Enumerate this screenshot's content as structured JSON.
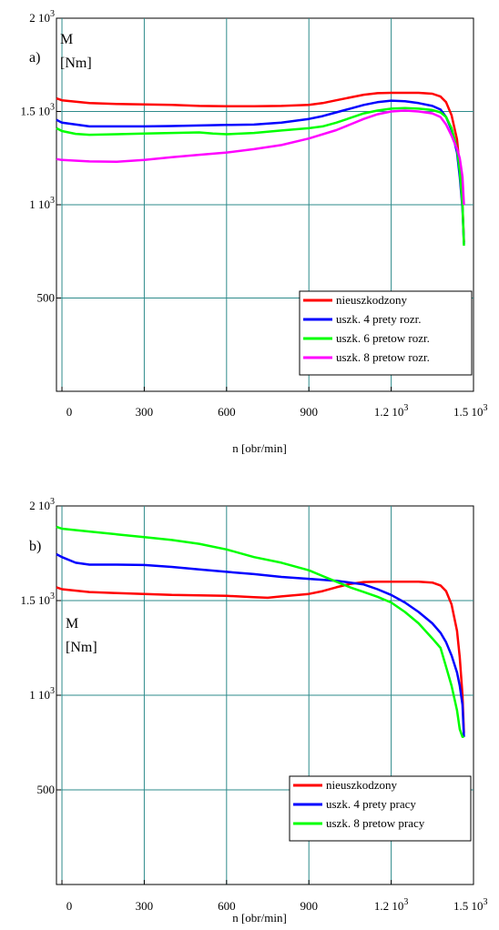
{
  "chart_data": [
    {
      "type": "line",
      "panel_label": "a)",
      "ylabel_line1": "M",
      "ylabel_line2": "[Nm]",
      "xlabel": "n [obr/min]",
      "xlim": [
        -20,
        1500
      ],
      "ylim": [
        0,
        2000
      ],
      "x_ticks": [
        {
          "value": 0,
          "label": "0"
        },
        {
          "value": 300,
          "label": "300"
        },
        {
          "value": 600,
          "label": "600"
        },
        {
          "value": 900,
          "label": "900"
        },
        {
          "value": 1200,
          "label": "1.2 10",
          "sup": "3"
        },
        {
          "value": 1500,
          "label": "1.5 10",
          "sup": "3"
        }
      ],
      "y_ticks": [
        {
          "value": 500,
          "label": "500"
        },
        {
          "value": 1000,
          "label": "1 10",
          "sup": "3"
        },
        {
          "value": 1500,
          "label": "1.5 10",
          "sup": "3"
        },
        {
          "value": 2000,
          "label": "2 10",
          "sup": "3"
        }
      ],
      "grid": true,
      "legend_position": "bottom-right",
      "series": [
        {
          "name": "nieuszkodzony",
          "color": "#ff0000",
          "x": [
            -20,
            0,
            100,
            200,
            300,
            400,
            500,
            600,
            700,
            800,
            900,
            950,
            1000,
            1050,
            1100,
            1150,
            1200,
            1250,
            1300,
            1350,
            1380,
            1400,
            1420,
            1440,
            1450,
            1460,
            1465
          ],
          "y": [
            1570,
            1560,
            1545,
            1540,
            1538,
            1535,
            1530,
            1528,
            1528,
            1530,
            1535,
            1545,
            1560,
            1575,
            1590,
            1598,
            1600,
            1600,
            1600,
            1595,
            1580,
            1550,
            1480,
            1350,
            1200,
            1000,
            800
          ]
        },
        {
          "name": "uszk. 4 prety rozr.",
          "color": "#0000ff",
          "x": [
            -20,
            0,
            100,
            200,
            300,
            400,
            500,
            600,
            700,
            800,
            900,
            950,
            1000,
            1050,
            1100,
            1150,
            1200,
            1250,
            1300,
            1350,
            1380,
            1400,
            1420,
            1440,
            1450,
            1460,
            1465
          ],
          "y": [
            1455,
            1440,
            1420,
            1420,
            1420,
            1422,
            1425,
            1428,
            1430,
            1440,
            1460,
            1475,
            1495,
            1515,
            1535,
            1550,
            1558,
            1555,
            1545,
            1530,
            1510,
            1470,
            1400,
            1280,
            1150,
            980,
            790
          ]
        },
        {
          "name": "uszk. 6 pretow rozr.",
          "color": "#00ff00",
          "x": [
            -20,
            0,
            50,
            100,
            200,
            300,
            400,
            500,
            550,
            600,
            700,
            800,
            900,
            950,
            1000,
            1050,
            1100,
            1150,
            1200,
            1250,
            1300,
            1350,
            1380,
            1400,
            1420,
            1440,
            1450,
            1460,
            1465
          ],
          "y": [
            1410,
            1395,
            1380,
            1375,
            1378,
            1382,
            1385,
            1388,
            1382,
            1378,
            1385,
            1398,
            1410,
            1420,
            1440,
            1465,
            1490,
            1505,
            1515,
            1518,
            1515,
            1508,
            1495,
            1470,
            1410,
            1300,
            1180,
            1000,
            780
          ]
        },
        {
          "name": "uszk. 8 pretow rozr.",
          "color": "#ff00ff",
          "x": [
            -20,
            0,
            100,
            200,
            300,
            400,
            500,
            600,
            700,
            800,
            900,
            1000,
            1050,
            1100,
            1150,
            1200,
            1250,
            1300,
            1350,
            1380,
            1400,
            1420,
            1440,
            1450,
            1460,
            1465
          ],
          "y": [
            1245,
            1240,
            1232,
            1230,
            1240,
            1255,
            1268,
            1280,
            1298,
            1320,
            1355,
            1400,
            1430,
            1460,
            1485,
            1500,
            1505,
            1500,
            1490,
            1470,
            1430,
            1370,
            1300,
            1250,
            1150,
            1000
          ]
        }
      ]
    },
    {
      "type": "line",
      "panel_label": "b)",
      "ylabel_line1": "M",
      "ylabel_line2": "[Nm]",
      "xlabel": "n [obr/min]",
      "xlim": [
        -20,
        1500
      ],
      "ylim": [
        0,
        2000
      ],
      "x_ticks": [
        {
          "value": 0,
          "label": "0"
        },
        {
          "value": 300,
          "label": "300"
        },
        {
          "value": 600,
          "label": "600"
        },
        {
          "value": 900,
          "label": "900"
        },
        {
          "value": 1200,
          "label": "1.2 10",
          "sup": "3"
        },
        {
          "value": 1500,
          "label": "1.5 10",
          "sup": "3"
        }
      ],
      "y_ticks": [
        {
          "value": 500,
          "label": "500"
        },
        {
          "value": 1000,
          "label": "1 10",
          "sup": "3"
        },
        {
          "value": 1500,
          "label": "1.5 10",
          "sup": "3"
        },
        {
          "value": 2000,
          "label": "2 10",
          "sup": "3"
        }
      ],
      "grid": true,
      "legend_position": "bottom-right",
      "series": [
        {
          "name": "nieuszkodzony",
          "color": "#ff0000",
          "x": [
            -20,
            0,
            100,
            200,
            300,
            400,
            500,
            600,
            700,
            750,
            800,
            900,
            950,
            1000,
            1050,
            1100,
            1150,
            1200,
            1250,
            1300,
            1350,
            1380,
            1400,
            1420,
            1440,
            1450,
            1460,
            1465
          ],
          "y": [
            1570,
            1560,
            1545,
            1540,
            1535,
            1530,
            1528,
            1525,
            1518,
            1515,
            1522,
            1535,
            1550,
            1570,
            1588,
            1598,
            1600,
            1600,
            1600,
            1600,
            1595,
            1580,
            1550,
            1480,
            1340,
            1200,
            1000,
            800
          ]
        },
        {
          "name": "uszk. 4 prety pracy",
          "color": "#0000ff",
          "x": [
            -20,
            0,
            50,
            100,
            200,
            300,
            400,
            500,
            600,
            700,
            800,
            900,
            1000,
            1050,
            1100,
            1150,
            1200,
            1250,
            1300,
            1350,
            1380,
            1400,
            1420,
            1440,
            1450,
            1460,
            1465
          ],
          "y": [
            1745,
            1730,
            1700,
            1690,
            1690,
            1688,
            1678,
            1665,
            1652,
            1640,
            1625,
            1615,
            1605,
            1595,
            1585,
            1560,
            1530,
            1490,
            1440,
            1380,
            1330,
            1280,
            1210,
            1120,
            1050,
            950,
            780
          ]
        },
        {
          "name": "uszk. 8 pretow pracy",
          "color": "#00ff00",
          "x": [
            -20,
            0,
            100,
            200,
            300,
            400,
            500,
            600,
            700,
            800,
            900,
            950,
            1000,
            1050,
            1100,
            1150,
            1200,
            1250,
            1300,
            1350,
            1380,
            1400,
            1420,
            1440,
            1450,
            1460,
            1465
          ],
          "y": [
            1890,
            1880,
            1865,
            1850,
            1835,
            1820,
            1800,
            1770,
            1730,
            1700,
            1660,
            1630,
            1600,
            1570,
            1545,
            1520,
            1490,
            1440,
            1380,
            1300,
            1250,
            1150,
            1050,
            920,
            820,
            780,
            780
          ]
        }
      ]
    }
  ]
}
